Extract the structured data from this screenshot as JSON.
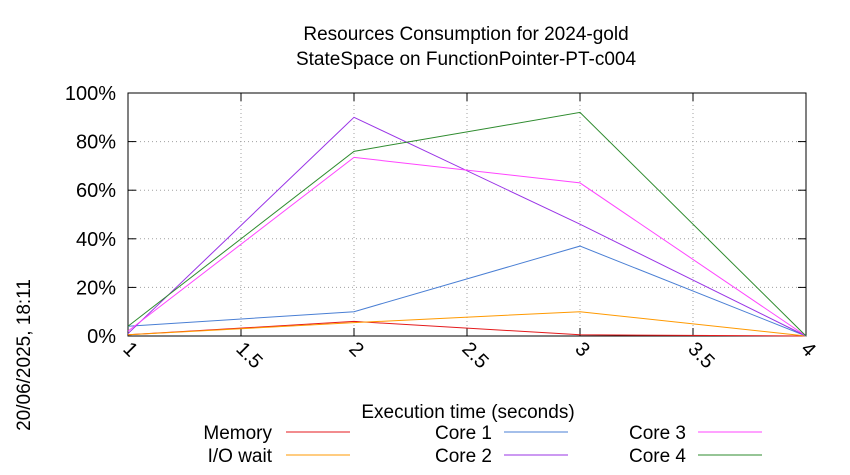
{
  "timestamp": "20/06/2025, 18:11",
  "chart_data": {
    "type": "line",
    "title": "Resources Consumption for 2024-gold",
    "subtitle": "StateSpace on FunctionPointer-PT-c004",
    "xlabel": "Execution time (seconds)",
    "ylabel": "",
    "xlim": [
      1,
      4
    ],
    "ylim": [
      0,
      100
    ],
    "x_ticks": [
      "1",
      "1.5",
      "2",
      "2.5",
      "3",
      "3.5",
      "4"
    ],
    "y_ticks": [
      "0%",
      "20%",
      "40%",
      "60%",
      "80%",
      "100%"
    ],
    "grid": true,
    "legend_position": "bottom",
    "series": [
      {
        "name": "Memory",
        "color": "#e41a1c",
        "x": [
          1,
          2,
          3,
          4
        ],
        "values": [
          0.5,
          6,
          0.5,
          0
        ]
      },
      {
        "name": "I/O wait",
        "color": "#ff9900",
        "x": [
          1,
          2,
          3,
          4
        ],
        "values": [
          0.5,
          5.5,
          10,
          0
        ]
      },
      {
        "name": "Core 1",
        "color": "#4a7fd4",
        "x": [
          1,
          2,
          3,
          4
        ],
        "values": [
          4,
          10,
          37,
          0
        ]
      },
      {
        "name": "Core 2",
        "color": "#9933e6",
        "x": [
          1,
          2,
          3,
          4
        ],
        "values": [
          1,
          90,
          46,
          0
        ]
      },
      {
        "name": "Core 3",
        "color": "#ff44ff",
        "x": [
          1,
          2,
          3,
          4
        ],
        "values": [
          2,
          73.5,
          63,
          0
        ]
      },
      {
        "name": "Core 4",
        "color": "#2e8b2e",
        "x": [
          1,
          2,
          3,
          4
        ],
        "values": [
          4,
          76,
          92,
          0
        ]
      }
    ]
  }
}
